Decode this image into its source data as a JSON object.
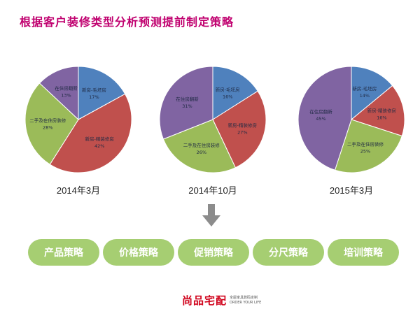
{
  "title": "根据客户装修类型分析预测提前制定策略",
  "chart_data": [
    {
      "type": "pie",
      "title": "2014年3月",
      "slices": [
        {
          "label": "新房-毛坯房",
          "value": 17,
          "value_label": "17%",
          "color": "#4f81bd"
        },
        {
          "label": "新房-精装修房",
          "value": 42,
          "value_label": "42%",
          "color": "#c0504d"
        },
        {
          "label": "二手及在住房装修",
          "value": 28,
          "value_label": "28%",
          "color": "#9bbb59"
        },
        {
          "label": "在住房翻新",
          "value": 13,
          "value_label": "13%",
          "color": "#8064a2"
        }
      ]
    },
    {
      "type": "pie",
      "title": "2014年10月",
      "slices": [
        {
          "label": "新房-毛坯房",
          "value": 16,
          "value_label": "16%",
          "color": "#4f81bd"
        },
        {
          "label": "新房-精装修房",
          "value": 27,
          "value_label": "27%",
          "color": "#c0504d"
        },
        {
          "label": "二手及在住房装修",
          "value": 26,
          "value_label": "26%",
          "color": "#9bbb59"
        },
        {
          "label": "在住房翻新",
          "value": 31,
          "value_label": "31%",
          "color": "#8064a2"
        }
      ]
    },
    {
      "type": "pie",
      "title": "2015年3月",
      "slices": [
        {
          "label": "新房-毛坯房",
          "value": 14,
          "value_label": "14%",
          "color": "#4f81bd"
        },
        {
          "label": "新房-精装修房",
          "value": 16,
          "value_label": "16%",
          "color": "#c0504d"
        },
        {
          "label": "二手及在住房装修",
          "value": 25,
          "value_label": "25%",
          "color": "#9bbb59"
        },
        {
          "label": "在住房翻新",
          "value": 45,
          "value_label": "45%",
          "color": "#8064a2"
        }
      ]
    }
  ],
  "arrow_icon": "down-arrow-icon",
  "strategies": [
    "产品策略",
    "价格策略",
    "促销策略",
    "分尺策略",
    "培训策略"
  ],
  "logo": {
    "name": "尚品宅配",
    "tagline_cn": "全屋家具数码定制",
    "tagline_en": "ORDER YOUR LIFE"
  },
  "colors": {
    "title": "#c0006f",
    "pill": "#a6ce72",
    "logo": "#d0021b"
  }
}
